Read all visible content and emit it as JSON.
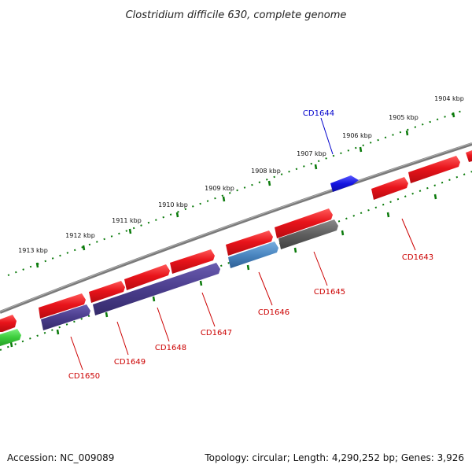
{
  "title": "Clostridium difficile 630, complete genome",
  "footer": {
    "accession": "Accession: NC_009089",
    "stats": "Topology: circular; Length: 4,290,252 bp; Genes: 3,926"
  },
  "colors": {
    "backbone": "#7a7a7a",
    "ticks": "#0a7a0a",
    "forward_gene": "#e8141b",
    "reverse_purple": "#4a3d8c",
    "reverse_blue": "#4a86c0",
    "reverse_grey": "#5e5e5e",
    "reverse_green": "#3ccc3c",
    "highlight_blue": "#1414e0",
    "label_red": "#cc0000",
    "label_blue": "#0000cc"
  },
  "scale": {
    "unit": "kbp",
    "labels": [
      "1913 kbp",
      "1912 kbp",
      "1911 kbp",
      "1910 kbp",
      "1909 kbp",
      "1908 kbp",
      "1907 kbp",
      "1906 kbp",
      "1905 kbp",
      "1904 kbp"
    ]
  },
  "gene_labels": [
    "CD1643",
    "CD1644",
    "CD1645",
    "CD1646",
    "CD1647",
    "CD1648",
    "CD1649",
    "CD1650"
  ]
}
